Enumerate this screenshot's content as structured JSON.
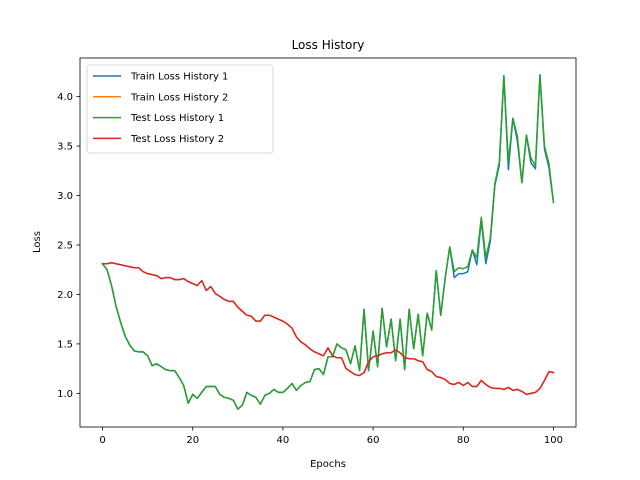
{
  "chart_data": {
    "type": "line",
    "title": "Loss History",
    "xlabel": "Epochs",
    "ylabel": "Loss",
    "xlim": [
      -5,
      105
    ],
    "ylim": [
      0.66,
      4.39
    ],
    "xticks": [
      0,
      20,
      40,
      60,
      80,
      100
    ],
    "yticks": [
      1.0,
      1.5,
      2.0,
      2.5,
      3.0,
      3.5,
      4.0
    ],
    "ytick_labels": [
      "1.0",
      "1.5",
      "2.0",
      "2.5",
      "3.0",
      "3.5",
      "4.0"
    ],
    "legend_position": "upper-left",
    "grid": false,
    "series": [
      {
        "name": "Train Loss History 1",
        "color": "#1f77b4",
        "values": [
          2.31,
          2.25,
          2.09,
          1.88,
          1.72,
          1.58,
          1.49,
          1.43,
          1.42,
          1.42,
          1.38,
          1.28,
          1.3,
          1.27,
          1.24,
          1.23,
          1.23,
          1.16,
          1.08,
          0.9,
          0.99,
          0.95,
          1.01,
          1.07,
          1.07,
          1.07,
          0.99,
          0.96,
          0.95,
          0.93,
          0.84,
          0.88,
          1.01,
          0.98,
          0.96,
          0.89,
          0.98,
          1.0,
          1.04,
          1.01,
          1.01,
          1.05,
          1.1,
          1.03,
          1.08,
          1.11,
          1.12,
          1.24,
          1.25,
          1.19,
          1.37,
          1.37,
          1.5,
          1.46,
          1.44,
          1.3,
          1.48,
          1.23,
          1.85,
          1.23,
          1.63,
          1.27,
          1.86,
          1.47,
          1.75,
          1.33,
          1.75,
          1.24,
          1.85,
          1.45,
          1.8,
          1.38,
          1.81,
          1.64,
          2.24,
          1.79,
          2.17,
          2.48,
          2.17,
          2.21,
          2.21,
          2.23,
          2.45,
          2.3,
          2.75,
          2.31,
          2.54,
          3.1,
          3.31,
          4.21,
          3.26,
          3.78,
          3.55,
          3.13,
          3.61,
          3.33,
          3.27,
          4.22,
          3.47,
          3.28,
          2.93
        ]
      },
      {
        "name": "Train Loss History 2",
        "color": "#ff7f0e",
        "values": [
          2.31,
          2.31,
          2.32,
          2.31,
          2.3,
          2.29,
          2.28,
          2.27,
          2.27,
          2.23,
          2.21,
          2.2,
          2.19,
          2.16,
          2.17,
          2.17,
          2.15,
          2.15,
          2.16,
          2.13,
          2.11,
          2.09,
          2.14,
          2.04,
          2.08,
          2.01,
          1.98,
          1.95,
          1.93,
          1.93,
          1.87,
          1.83,
          1.79,
          1.78,
          1.73,
          1.73,
          1.79,
          1.79,
          1.77,
          1.75,
          1.73,
          1.7,
          1.66,
          1.57,
          1.52,
          1.49,
          1.45,
          1.42,
          1.4,
          1.38,
          1.46,
          1.38,
          1.36,
          1.36,
          1.25,
          1.22,
          1.19,
          1.18,
          1.21,
          1.32,
          1.37,
          1.38,
          1.4,
          1.41,
          1.41,
          1.44,
          1.41,
          1.36,
          1.35,
          1.35,
          1.33,
          1.32,
          1.24,
          1.22,
          1.17,
          1.16,
          1.14,
          1.1,
          1.09,
          1.11,
          1.08,
          1.11,
          1.07,
          1.07,
          1.13,
          1.09,
          1.06,
          1.05,
          1.05,
          1.04,
          1.06,
          1.03,
          1.04,
          1.02,
          0.99,
          1.0,
          1.01,
          1.05,
          1.13,
          1.22,
          1.21
        ]
      },
      {
        "name": "Test Loss History 1",
        "color": "#2ca02c",
        "values": [
          2.31,
          2.25,
          2.09,
          1.88,
          1.72,
          1.58,
          1.49,
          1.43,
          1.42,
          1.42,
          1.38,
          1.28,
          1.3,
          1.27,
          1.24,
          1.23,
          1.23,
          1.16,
          1.08,
          0.9,
          0.99,
          0.95,
          1.01,
          1.07,
          1.07,
          1.07,
          0.99,
          0.96,
          0.95,
          0.93,
          0.84,
          0.88,
          1.01,
          0.98,
          0.96,
          0.89,
          0.98,
          1.0,
          1.04,
          1.01,
          1.01,
          1.05,
          1.1,
          1.03,
          1.08,
          1.11,
          1.12,
          1.24,
          1.25,
          1.19,
          1.37,
          1.37,
          1.5,
          1.46,
          1.44,
          1.3,
          1.48,
          1.23,
          1.85,
          1.23,
          1.63,
          1.27,
          1.86,
          1.47,
          1.75,
          1.33,
          1.75,
          1.24,
          1.85,
          1.45,
          1.8,
          1.38,
          1.81,
          1.64,
          2.24,
          1.79,
          2.17,
          2.48,
          2.23,
          2.27,
          2.26,
          2.28,
          2.45,
          2.37,
          2.78,
          2.37,
          2.57,
          3.12,
          3.34,
          4.21,
          3.34,
          3.78,
          3.6,
          3.13,
          3.61,
          3.38,
          3.3,
          4.22,
          3.5,
          3.32,
          2.93
        ]
      },
      {
        "name": "Test Loss History 2",
        "color": "#d62728",
        "values": [
          2.31,
          2.31,
          2.32,
          2.31,
          2.3,
          2.29,
          2.28,
          2.27,
          2.27,
          2.23,
          2.21,
          2.2,
          2.19,
          2.16,
          2.17,
          2.17,
          2.15,
          2.15,
          2.16,
          2.13,
          2.11,
          2.09,
          2.14,
          2.04,
          2.08,
          2.01,
          1.98,
          1.95,
          1.93,
          1.93,
          1.87,
          1.83,
          1.79,
          1.78,
          1.73,
          1.73,
          1.79,
          1.79,
          1.77,
          1.75,
          1.73,
          1.7,
          1.66,
          1.57,
          1.52,
          1.49,
          1.45,
          1.42,
          1.4,
          1.38,
          1.46,
          1.38,
          1.36,
          1.36,
          1.25,
          1.22,
          1.19,
          1.18,
          1.21,
          1.32,
          1.37,
          1.38,
          1.4,
          1.41,
          1.41,
          1.44,
          1.41,
          1.36,
          1.35,
          1.35,
          1.33,
          1.32,
          1.24,
          1.22,
          1.17,
          1.16,
          1.14,
          1.1,
          1.09,
          1.11,
          1.08,
          1.11,
          1.07,
          1.07,
          1.13,
          1.09,
          1.06,
          1.05,
          1.05,
          1.04,
          1.06,
          1.03,
          1.04,
          1.02,
          0.99,
          1.0,
          1.01,
          1.05,
          1.13,
          1.22,
          1.21
        ]
      }
    ]
  }
}
